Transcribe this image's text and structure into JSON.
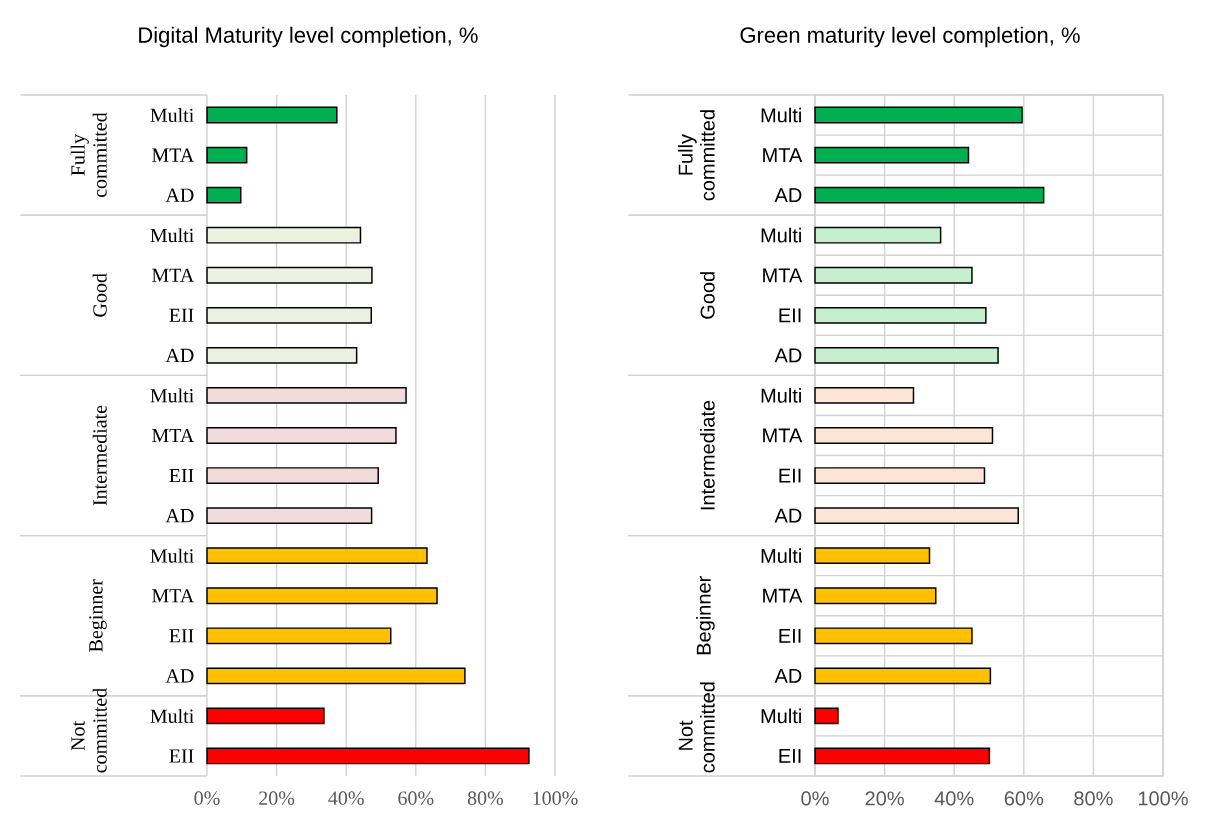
{
  "chart_data": [
    {
      "type": "bar",
      "orientation": "horizontal",
      "title": "Digital Maturity level completion, %",
      "categories": [
        "Multi",
        "MTA",
        "AD",
        "Multi",
        "MTA",
        "EII",
        "AD",
        "Multi",
        "MTA",
        "EII",
        "AD",
        "Multi",
        "MTA",
        "EII",
        "AD",
        "Multi",
        "EII"
      ],
      "values": [
        37.3,
        11.4,
        9.7,
        44.1,
        47.4,
        47.2,
        43.0,
        57.2,
        54.3,
        49.2,
        47.3,
        63.2,
        66.1,
        52.8,
        74.1,
        33.6,
        92.5
      ],
      "colors": [
        "#00b050",
        "#00b050",
        "#00b050",
        "#ebf1de",
        "#ebf1de",
        "#ebf1de",
        "#ebf1de",
        "#f2dcdb",
        "#f2dcdb",
        "#f2dcdb",
        "#f2dcdb",
        "#ffc000",
        "#ffc000",
        "#ffc000",
        "#ffc000",
        "#ff0000",
        "#ff0000"
      ],
      "annotations": [
        "Fully committed",
        "Good",
        "Intermediate",
        "Beginner",
        "Not committed"
      ],
      "xlim": [
        0,
        100
      ],
      "xticks": [
        {
          "value": 0,
          "label": "0%"
        },
        {
          "value": 20,
          "label": "20%"
        },
        {
          "value": 40,
          "label": "40%"
        },
        {
          "value": 60,
          "label": "60%"
        },
        {
          "value": 80,
          "label": "80%"
        },
        {
          "value": 100,
          "label": "100%"
        }
      ],
      "grid": "x"
    },
    {
      "type": "bar",
      "orientation": "horizontal",
      "title": "Green maturity level completion, %",
      "categories": [
        "Multi",
        "MTA",
        "AD",
        "Multi",
        "MTA",
        "EII",
        "AD",
        "Multi",
        "MTA",
        "EII",
        "AD",
        "Multi",
        "MTA",
        "EII",
        "AD",
        "Multi",
        "EII"
      ],
      "values": [
        59.5,
        44.1,
        65.7,
        36.1,
        45.1,
        49.1,
        52.6,
        28.3,
        51.0,
        48.7,
        58.4,
        32.9,
        34.7,
        45.1,
        50.4,
        6.6,
        50.1
      ],
      "colors": [
        "#00b050",
        "#00b050",
        "#00b050",
        "#c6efce",
        "#c6efce",
        "#c6efce",
        "#c6efce",
        "#fce4d6",
        "#fce4d6",
        "#fce4d6",
        "#fce4d6",
        "#ffc000",
        "#ffc000",
        "#ffc000",
        "#ffc000",
        "#ff0000",
        "#ff0000"
      ],
      "annotations": [
        "Fully committed",
        "Good",
        "Intermediate",
        "Beginner",
        "Not committed"
      ],
      "xlim": [
        0,
        100
      ],
      "xticks": [
        {
          "value": 0,
          "label": "0%"
        },
        {
          "value": 20,
          "label": "20%"
        },
        {
          "value": 40,
          "label": "40%"
        },
        {
          "value": 60,
          "label": "60%"
        },
        {
          "value": 80,
          "label": "80%"
        },
        {
          "value": 100,
          "label": "100%"
        }
      ],
      "grid": true
    }
  ]
}
